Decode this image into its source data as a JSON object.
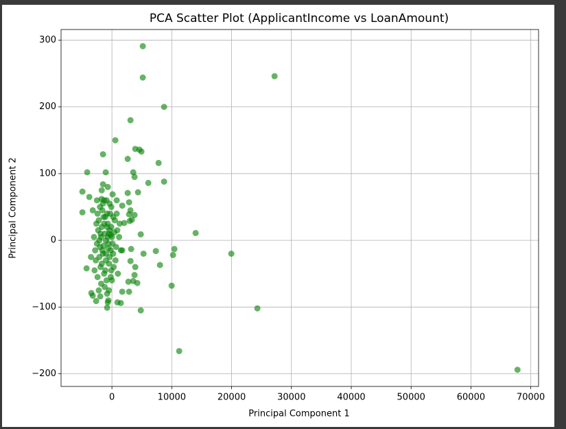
{
  "chart_data": {
    "type": "scatter",
    "title": "PCA Scatter Plot (ApplicantIncome vs LoanAmount)",
    "x_label": "Principal Component 1",
    "y_label": "Principal Component 2",
    "color": "#008000",
    "opacity": 0.6,
    "grid": true,
    "xlim": [
      -8500,
      71300
    ],
    "ylim": [
      -219,
      316
    ],
    "xticks": [
      0,
      10000,
      20000,
      30000,
      40000,
      50000,
      60000,
      70000
    ],
    "yticks": [
      {
        "value": -200,
        "label": "−200"
      },
      {
        "value": -100,
        "label": "−100"
      },
      0,
      100,
      200,
      300
    ],
    "x": [
      5160,
      5160,
      27180,
      8720,
      3100,
      570,
      3900,
      4590,
      4930,
      2640,
      7800,
      -1490,
      -4130,
      -1030,
      3560,
      3780,
      8720,
      6080,
      -4930,
      -1490,
      -690,
      4360,
      2640,
      110,
      -4930,
      13990,
      19950,
      10440,
      10210,
      7340,
      5280,
      8030,
      9980,
      24310,
      11240,
      67780,
      4820,
      1490,
      920,
      -690,
      -800,
      1720,
      2870,
      4240,
      3560,
      2750,
      3900,
      3780,
      3100,
      -4240,
      -3210,
      -3440,
      -2640,
      -1950,
      2980,
      2870,
      3780,
      1720,
      2870,
      3100,
      3330,
      2060,
      4820,
      3210,
      1720,
      800,
      -3780,
      -1720,
      -2000,
      -1800,
      -1500,
      -1200,
      -1000,
      -800,
      -600,
      -400,
      -200,
      0,
      -2200,
      -1900,
      -1600,
      -1300,
      -1100,
      -900,
      -700,
      -500,
      -300,
      -100,
      -2500,
      -2300,
      -2100,
      -1700,
      -1400,
      -1000,
      -600,
      -200,
      200,
      400,
      -2800,
      -2600,
      -2400,
      -2000,
      -1500,
      -1200,
      -900,
      -500,
      -100,
      300,
      -3000,
      -2700,
      -2400,
      -1800,
      -1300,
      -800,
      -400,
      0,
      500,
      700,
      -1900,
      -1600,
      -1300,
      -1000,
      -700,
      -400,
      -100,
      200,
      600,
      900,
      -2100,
      -1700,
      -1400,
      -1100,
      -800,
      -500,
      -200,
      100,
      800,
      1000,
      -3500,
      -3200,
      -2900,
      -2500,
      -2200,
      1200,
      1500,
      1300,
      -1700,
      -600
    ],
    "values": [
      291,
      244,
      246,
      200,
      180,
      150,
      137,
      136,
      133,
      122,
      116,
      129,
      102,
      102,
      102,
      95,
      88,
      86,
      73,
      84,
      80,
      72,
      71,
      69,
      42,
      11,
      -20,
      -13,
      -22,
      -16,
      -20,
      -37,
      -68,
      -102,
      -166,
      -194,
      -105,
      -94,
      -93,
      -93,
      -101,
      -77,
      -77,
      -64,
      -61,
      -62,
      -40,
      -52,
      -31,
      -42,
      -83,
      -79,
      -91,
      -84,
      29,
      39,
      38,
      52,
      57,
      45,
      31,
      26,
      9,
      -13,
      -15,
      60,
      65,
      62,
      -10,
      5,
      -20,
      10,
      -30,
      20,
      -5,
      15,
      -15,
      5,
      30,
      -40,
      45,
      -50,
      35,
      -60,
      25,
      -35,
      40,
      -45,
      -5,
      15,
      -25,
      20,
      -8,
      0,
      -12,
      8,
      -20,
      12,
      -15,
      25,
      -55,
      50,
      55,
      -70,
      60,
      -75,
      50,
      -40,
      5,
      -30,
      40,
      -65,
      60,
      -80,
      55,
      -60,
      30,
      -10,
      10,
      -15,
      25,
      -20,
      5,
      -25,
      20,
      35,
      -30,
      15,
      0,
      -35,
      35,
      -45,
      40,
      10,
      -55,
      -5,
      40,
      -50,
      -25,
      45,
      -45,
      60,
      -75,
      5,
      -15,
      25,
      75,
      -90
    ]
  }
}
